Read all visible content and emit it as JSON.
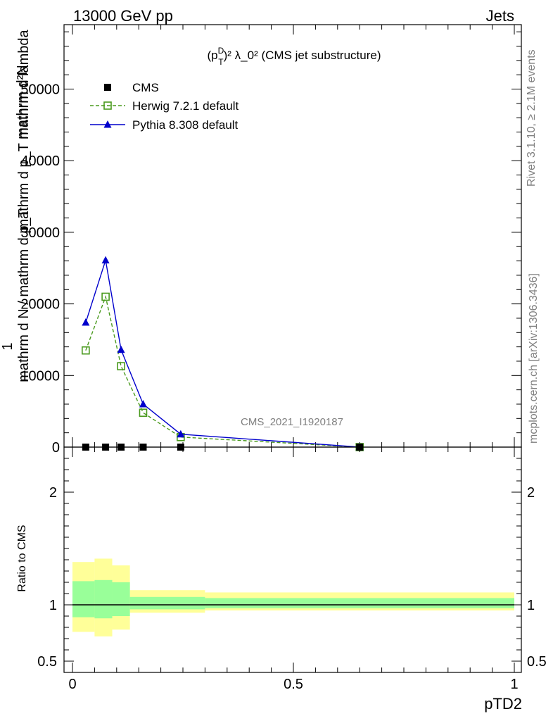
{
  "header": {
    "left": "13000 GeV pp",
    "right": "Jets"
  },
  "side": {
    "rivet": "Rivet 3.1.10, ≥ 2.1M events",
    "mcplots": "mcplots.cern.ch [arXiv:1306.3436]"
  },
  "chart_data": [
    {
      "type": "line",
      "title_parts": {
        "p": "(p",
        "sup_d": "D",
        "sub_t": "T",
        "rest": ")² λ_0² (CMS jet substructure)"
      },
      "watermark": "CMS_2021_I1920187",
      "ylabel_lines": [
        "mathrm d²N",
        "mathrm d p_T mathrm d lambda",
        "1",
        "mathrm d N / mathrm d p_T"
      ],
      "xlim": [
        0,
        1
      ],
      "ylim": [
        0,
        59000
      ],
      "yticks": [
        {
          "value": 0,
          "label": "0"
        },
        {
          "value": 10000,
          "label": "10000"
        },
        {
          "value": 20000,
          "label": "20000"
        },
        {
          "value": 30000,
          "label": "30000"
        },
        {
          "value": 40000,
          "label": "40000"
        },
        {
          "value": 50000,
          "label": "50000"
        }
      ],
      "grid": false,
      "legend_position": "top-left",
      "series": [
        {
          "name": "CMS",
          "marker": "square-filled",
          "color": "#000000",
          "line": "none",
          "x": [
            0.03,
            0.075,
            0.11,
            0.16,
            0.245,
            0.65
          ],
          "y": [
            0,
            0,
            0,
            0,
            0,
            0
          ]
        },
        {
          "name": "Herwig 7.2.1 default",
          "marker": "square-open",
          "color": "#4a9a1e",
          "line": "dashed",
          "x": [
            0.03,
            0.075,
            0.11,
            0.16,
            0.245,
            0.65
          ],
          "y": [
            13500,
            21000,
            11300,
            4800,
            1400,
            0
          ]
        },
        {
          "name": "Pythia 8.308 default",
          "marker": "triangle-filled",
          "color": "#0000cc",
          "line": "solid",
          "x": [
            0.03,
            0.075,
            0.11,
            0.16,
            0.245,
            0.65
          ],
          "y": [
            17400,
            26100,
            13600,
            6000,
            1800,
            0
          ]
        }
      ]
    },
    {
      "type": "area",
      "ylabel": "Ratio to CMS",
      "xlabel": "pTD2",
      "xlim": [
        0,
        1
      ],
      "ylim": [
        0.4,
        2.4
      ],
      "yticks": [
        {
          "value": 0.5,
          "label": "0.5"
        },
        {
          "value": 1,
          "label": "1"
        },
        {
          "value": 2,
          "label": "2"
        }
      ],
      "xticks": [
        {
          "value": 0,
          "label": "0"
        },
        {
          "value": 0.5,
          "label": "0.5"
        },
        {
          "value": 1,
          "label": "1"
        }
      ],
      "reference_line": 1,
      "bands": {
        "bins": [
          [
            0.0,
            0.05
          ],
          [
            0.05,
            0.09
          ],
          [
            0.09,
            0.13
          ],
          [
            0.13,
            0.3
          ],
          [
            0.3,
            1.0
          ]
        ],
        "outer": {
          "color": "#ffff99",
          "low": [
            0.76,
            0.72,
            0.78,
            0.93,
            0.95
          ],
          "high": [
            1.38,
            1.41,
            1.35,
            1.13,
            1.11
          ]
        },
        "inner": {
          "color": "#99ff99",
          "low": [
            0.89,
            0.88,
            0.9,
            0.96,
            0.97
          ],
          "high": [
            1.21,
            1.22,
            1.2,
            1.07,
            1.06
          ]
        }
      }
    }
  ]
}
